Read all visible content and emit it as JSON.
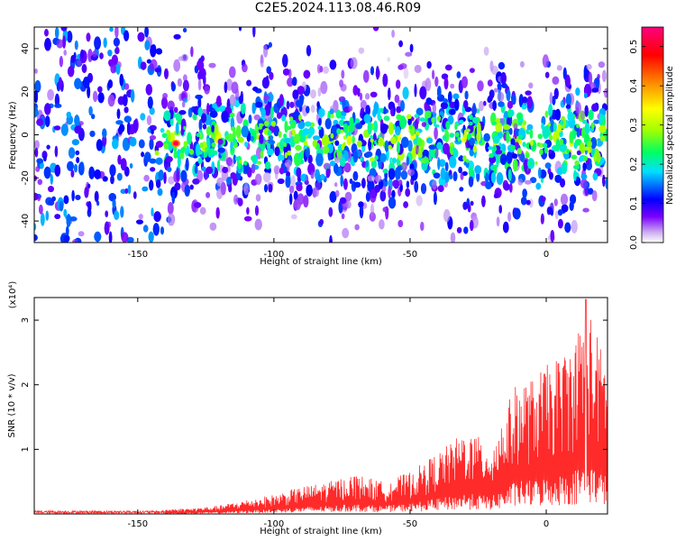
{
  "title": "C2E5.2024.113.08.46.R09",
  "chart_data": [
    {
      "type": "heatmap",
      "xlabel": "Height of straight line (km)",
      "ylabel": "Frequency (Hz)",
      "xlim": [
        -188,
        22.5
      ],
      "ylim": [
        -50,
        50
      ],
      "xticks": [
        -150,
        -100,
        -50,
        0
      ],
      "yticks": [
        -40,
        -20,
        0,
        20,
        40
      ],
      "colorbar": {
        "label": "Normalized spectral amplitude",
        "range": [
          0.0,
          0.55
        ],
        "ticks": [
          "0.0",
          "0.1",
          "0.2",
          "0.3",
          "0.4",
          "0.5"
        ],
        "colors": [
          "#ffffff",
          "#c9a8f0",
          "#7a00ff",
          "#0000ff",
          "#00e0ff",
          "#00ff60",
          "#a0ff00",
          "#ffff00",
          "#ff8000",
          "#ff0000",
          "#ff0080"
        ]
      },
      "energy_band": {
        "center_hz": -2,
        "half_width_hz": 14
      },
      "peak": {
        "x": -136,
        "y": -4,
        "value": 0.52
      },
      "grid": false
    },
    {
      "type": "line",
      "xlabel": "Height of straight line (km)",
      "ylabel": "SNR (10 * v/v)",
      "y_multiplier": "(x10⁴)",
      "xlim": [
        -188,
        22.5
      ],
      "ylim": [
        0,
        3.35
      ],
      "xticks": [
        -150,
        -100,
        -50,
        0
      ],
      "yticks": [
        1,
        2,
        3
      ],
      "series": [
        {
          "color": "#ff2a2a",
          "envelope_x": [
            -188,
            -150,
            -130,
            -120,
            -110,
            -100,
            -90,
            -80,
            -70,
            -60,
            -50,
            -45,
            -40,
            -35,
            -30,
            -25,
            -20,
            -15,
            -12,
            -10,
            -5,
            0,
            5,
            10,
            15,
            20,
            22.5
          ],
          "envelope_peak": [
            0.05,
            0.06,
            0.09,
            0.13,
            0.22,
            0.3,
            0.42,
            0.5,
            0.62,
            0.5,
            0.65,
            0.8,
            0.95,
            1.1,
            1.3,
            1.2,
            1.1,
            1.6,
            1.95,
            2.05,
            2.1,
            2.3,
            2.45,
            2.7,
            3.3,
            2.6,
            2.5
          ]
        }
      ],
      "max_point": {
        "x": 14.5,
        "y": 3.32
      },
      "grid": false
    }
  ]
}
